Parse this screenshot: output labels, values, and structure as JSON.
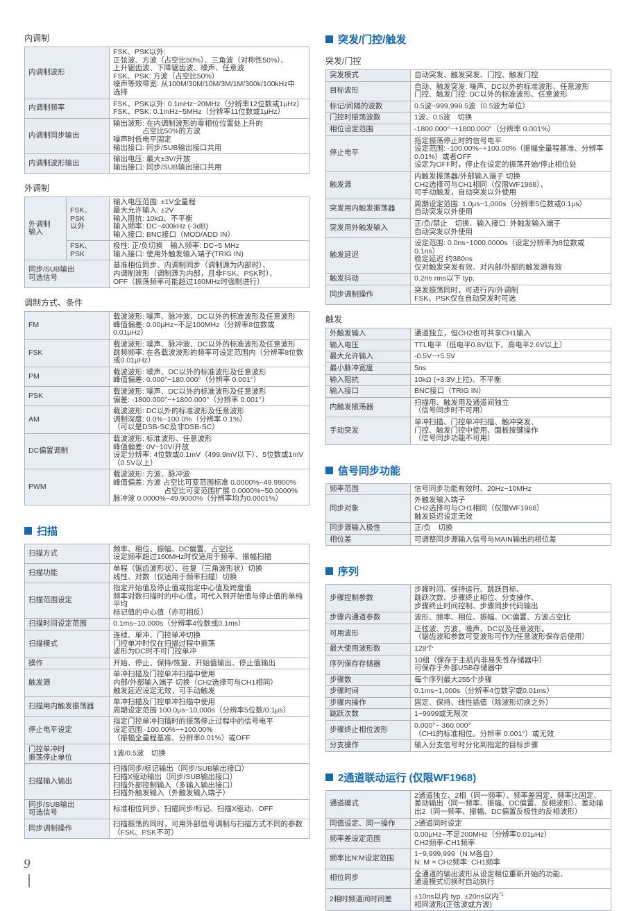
{
  "page": {
    "number": "9"
  },
  "colors": {
    "accent": "#1769aa",
    "label_bg": "#e8edf3",
    "border": "#a9b2ba",
    "footnote": "#cc3333"
  },
  "columns": [
    {
      "sections": [
        {
          "heading": {
            "text": "内调制",
            "style": "plain"
          },
          "table": {
            "rows": [
              {
                "label": "内调制波形",
                "value": "FSK、PSK以外:\n正弦波、方波（占空比50%）、三角波（对称性50%）、\n上升锯齿波、下降锯齿波、噪声、任意波\nFSK、PSK: 方波（占空比50%）\n噪声等效带宽: 从100M/30M/10M/3M/1M/300k/100kHz中\n选择"
              },
              {
                "label": "内调制频率",
                "value": "FSK、PSK以外: 0.1mHz~20MHz（分辨率12位数或1μHz）\nFSK、PSK: 0.1mHz~5MHz（分辨率11位数或1μHz）"
              },
              {
                "label": "内调制同步输出",
                "value": "输出波形: 在内调制波形的零相位位置处上升的\n　　　　占空比50%的方波\n噪声时低电平固定\n输出接口: 同步/SUB输出接口共用"
              },
              {
                "label": "内调制波形输出",
                "value": "输出电压: 最大±3V/开放\n输出接口: 同步/SUB输出接口共用"
              }
            ]
          }
        },
        {
          "heading": {
            "text": "外调制",
            "style": "plain"
          },
          "modx": {
            "group_label": "外调制\n输入",
            "sub_rows": [
              {
                "sub": "FSK、PSK\n以外",
                "value": "输入电压范围: ±1V全量程\n最大允许输入: ±2V\n输入阻抗: 10kΩ、不平衡\n输入频率: DC~400kHz (-3dB)\n输入接口: BNC接口（MOD/ADD IN）"
              },
              {
                "sub": "FSK、PSK",
                "value": "极性: 正/负切换　输入频率: DC~5 MHz\n输入接口: 使用外触发输入端子(TRIG IN)"
              }
            ],
            "bottom_row": {
              "label": "同步/SUB输出\n可选信号",
              "value": "基准相位同步、内调制同步（调制源为内部时）、\n内调制波形（调制源为内部，且非FSK、PSK时）、\nOFF（振荡频率可能超过160MHz时强制进行）"
            }
          }
        },
        {
          "heading": {
            "text": "调制方式、条件",
            "style": "plain"
          },
          "table": {
            "rows": [
              {
                "label": "FM",
                "value": "载波波形: 噪声、脉冲波、DC以外的标准波形及任意波形\n峰值偏差: 0.00μHz~不足100MHz（分辨率8位数或0.01μHz）"
              },
              {
                "label": "FSK",
                "value": "载波波形: 噪声、脉冲波、DC以外的标准波形及任意波形\n跳频频率: 在各载波波形的频率可设定范围内（分辨率8位数或0.01μHz）"
              },
              {
                "label": "PM",
                "value": "载波波形: 噪声、DC以外的标准波形及任意波形\n峰值偏差: 0.000°~180.000°（分辨率 0.001°）"
              },
              {
                "label": "PSK",
                "value": "载波波形: 噪声、DC以外的标准波形及任意波形\n偏差: -1800.000°~+1800.000°（分辨率 0.001°）"
              },
              {
                "label": "AM",
                "value": "载波波形: DC以外的标准波形及任意波形\n调制深度: 0.0%~100.0%（分辨率 0.1%）\n（可以是DSB-SC及非DSB-SC）"
              },
              {
                "label": "DC偏置调制",
                "value": "载波波形: 标准波形、任意波形\n峰值偏差: 0V~10V/开放\n设定分辨率: 4位数或0.1mV（499.9mV以下）、5位数或1mV\n（0.5V以上）"
              },
              {
                "label": "PWM",
                "value": "载波波形: 方波、脉冲波\n峰值偏差: 方波 占空比可变范围标准 0.0000%~49.9900%\n　　　　　　　占空比可变范围扩展 0.0000%~50.0000%\n脉冲波 0.0000%~49.9000%（分辨率均为0.0001%）"
              }
            ]
          }
        },
        {
          "heading": {
            "text": "扫描",
            "style": "accent"
          },
          "table": {
            "rows": [
              {
                "label": "扫描方式",
                "value": "频率、相位、振幅、DC偏置、占空比\n设定频率超过160MHz时仅适用于频率、振幅扫描"
              },
              {
                "label": "扫描功能",
                "value": "单程（锯齿波形状）、往复（三角波形状）切换\n线性、对数（仅适用于频率扫描）切换"
              },
              {
                "label": "扫描范围设定",
                "value": "指定开始值及停止值或指定中心值及跨度值\n频率对数扫描时的中心值，可代入到开始值与停止值的单纯平均\n标记值的中心值（亦可相反）"
              },
              {
                "label": "扫描时间设定范围",
                "value": "0.1ms~10,000s（分辨率4位数或0.1ms）"
              },
              {
                "label": "扫描模式",
                "value": "连续、单冲、门控单冲切换\n门控单冲时仅在扫描过程中振荡\n波形为DC时不可门控单冲"
              },
              {
                "label": "操作",
                "value": "开始、停止、保持/恢复、开始值输出、停止值输出"
              },
              {
                "label": "触发源",
                "value": "单冲扫描及门控单冲扫描中使用\n内部/外部输入端子 切换（CH2选择可与CH1相同）\n触发延迟设定无效，可手动触发"
              },
              {
                "label": "扫描用内触发振荡器",
                "value": "单冲扫描及门控单冲扫描中使用\n周期设定范围 100.0μs~10,000s（分辨率5位数/0.1μs）"
              },
              {
                "label": "停止电平设定",
                "value": "指定门控单冲扫描时的振荡停止过程中的信号电平\n设定范围 -100.00%~+100.00%\n（振幅全量程基准、分辨率0.01%）或OFF"
              },
              {
                "label": "门控单冲时\n振荡停止单位",
                "value": "1波/0.5波　切换"
              },
              {
                "label": "扫描输入输出",
                "value": "扫描同步/标记输出（同步/SUB输出接口）\n扫描X驱动输出（同步/SUB输出接口）\n扫描外部控制输入（多输入输出接口）\n扫描外触发输入（外触发输入端子）"
              },
              {
                "label": "同步/SUB输出\n可选信号",
                "value": "标准相位同步、扫描同步/标记、扫描X驱动、OFF"
              },
              {
                "label": "同步调制操作",
                "value": "扫描振荡的同时，可用外部信号调制与扫描方式不同的参数\n（FSK、PSK不可）"
              }
            ]
          }
        }
      ]
    },
    {
      "sections": [
        {
          "heading": {
            "text": "突发/门控/触发",
            "style": "accent"
          }
        },
        {
          "heading": {
            "text": "突发/门控",
            "style": "plain"
          },
          "table": {
            "rows": [
              {
                "label": "突发模式",
                "value": "自动突发、触发突发、门控、触发门控"
              },
              {
                "label": "目标波形",
                "value": "自动、触发突发: 噪声、DC以外的标准波形、任意波形\n门控、触发门控: DC以外的标准波形、任意波形"
              },
              {
                "label": "标记/间隔的波数",
                "value": "0.5波~999,999.5波（0.5波为单位）"
              },
              {
                "label": "门控时振荡波数",
                "value": "1波、0.5波　切换"
              },
              {
                "label": "相位设定范围",
                "value": "-1800.000°~+1800.000°（分辨率 0.001%）"
              },
              {
                "label": "停止电平",
                "value": "指定振荡停止时的信号电平\n设定范围: -100.00%~+100.00%（振幅全量程基准、分辨率0.01%）或者OFF\n设定为OFF时，停止在设定的振荡开始/停止相位处"
              },
              {
                "label": "触发源",
                "value": "内触发振荡器/外部输入端子 切换\nCH2选择可与CH1相同（仅限WF1968）、\n可手动触发，自动突发以外使用"
              },
              {
                "label": "突发用内触发振荡器",
                "value": "周期设定范围: 1.0μs~1,000s（分辨率5位数或0.1μs）\n自动突发以外使用"
              },
              {
                "label": "突发用外触发输入",
                "value": "正/负/禁止　切换、输入接口: 外触发输入端子\n自动突发以外使用"
              },
              {
                "label": "触发延迟",
                "value": "设定范围: 0.0ns~1000.0000s（设定分辨率为8位数或0.1ns）\n稳定延迟 约380ns\n仅对触发突发有效、对内部/外部的触发源有效"
              },
              {
                "label": "触发抖动",
                "value": "0.2ns rms以下 typ."
              },
              {
                "label": "同步调制操作",
                "value": "突发振荡同时，可进行内/外调制\nFSK、PSK仅在自动突发时可选"
              }
            ]
          }
        },
        {
          "heading": {
            "text": "触发",
            "style": "plain"
          },
          "table": {
            "rows": [
              {
                "label": "外触发输入",
                "value": "通道独立，但CH2也可共享CH1输入"
              },
              {
                "label": "输入电压",
                "value": "TTL电平（低电平0.8V以下、高电平2.6V以上）"
              },
              {
                "label": "最大允许输入",
                "value": "-0.5V~+5.5V"
              },
              {
                "label": "最小脉冲宽度",
                "value": "5ns"
              },
              {
                "label": "输入阻抗",
                "value": "10kΩ (+3.3V上拉)、不平衡"
              },
              {
                "label": "输入接口",
                "value": "BNC接口（TRIG IN）"
              },
              {
                "label": "内触发振荡器",
                "value": "扫描用、触发用及通道间独立\n（信号同步时不可用）"
              },
              {
                "label": "手动突发",
                "value": "单冲扫描、门控单冲扫描、触冲突发、\n门控、触发门控中使用、面板按键操作\n（信号同步功能不可用）"
              }
            ]
          }
        },
        {
          "heading": {
            "text": "信号同步功能",
            "style": "accent"
          },
          "table": {
            "rows": [
              {
                "label": "频率范围",
                "value": "信号同步功能有效时、20Hz~10MHz"
              },
              {
                "label": "同步对象",
                "value": "外触发输入端子\nCH2选择可与CH1相同（仅限WF1968）\n触发延迟设定无效"
              },
              {
                "label": "同步源输入极性",
                "value": "正/负　切换"
              },
              {
                "label": "相位差",
                "value": "可调整同步源输入信号与MAIN输出的相位差"
              }
            ]
          }
        },
        {
          "heading": {
            "text": "序列",
            "style": "accent"
          },
          "table": {
            "rows": [
              {
                "label": "步骤控制参数",
                "value": "步骤时间、保持运行、跳跃目标、\n跳跃次数、步骤终止相位、分支操作、\n步骤终止时间控制、步骤同步代码输出"
              },
              {
                "label": "步骤内通道参数",
                "value": "波形、频率、相位、振幅、DC偏置、方波占空比"
              },
              {
                "label": "可用波形",
                "value": "正弦波、方波、噪声、DC以及任意波形。\n（锯齿波和参数可变波形可作为任意波形保存后使用）"
              },
              {
                "label": "最大使用波形数",
                "value": "128个"
              },
              {
                "label": "序列保存存储器",
                "value": "10组（保存于主机内非易失性存储器中）\n可保存于外部USB存储器中"
              },
              {
                "label": "步骤数",
                "value": "每个序列最大255个步骤"
              },
              {
                "label": "步骤时间",
                "value": "0.1ms~1,000s（分辨率4位数字或0.01ms）"
              },
              {
                "label": "步骤内操作",
                "value": "固定、保持、线性插值（除波形切换之外）"
              },
              {
                "label": "跳跃次数",
                "value": "1~9999或无限次"
              },
              {
                "label": "步骤终止相位波形",
                "value": "0.000°~ 360.000°\n（CH1的标准相位。分辨率 0.001°）或无效"
              },
              {
                "label": "分支操作",
                "value": "输入分支信号时分化到指定的目标步骤"
              }
            ]
          }
        },
        {
          "heading": {
            "text": "2通道联动运行 (仅限WF1968)",
            "style": "accent"
          },
          "table": {
            "rows": [
              {
                "label": "通道模式",
                "value": "2通道独立、2相（同一频率）、频率差固定、频率比固定、差动输出（同一频率、振幅、DC偏置、反相波形）、差动输出2（同一频率、振幅、DC偏置反极性的反相波形）"
              },
              {
                "label": "同值设定、同一操作",
                "value": "2通道同时设定"
              },
              {
                "label": "频率差设定范围",
                "value": "0.00μHz~不足200MHz（分辨率0.01μHz）\nCH2频率-CH1频率"
              },
              {
                "label": "频率比N:M设定范围",
                "value": "1~9,999,999（N.M各自）\nN: M = CH2频率: CH1频率"
              },
              {
                "label": "相位同步",
                "value": "全通道的输出波形从设定相位重新开始的功能、\n通道模式切换时自动执行"
              },
              {
                "label": "2相时频道间时间差",
                "value": "±10ns以内 typ. ±20ns以内\n相同波形(正弦波或方波)",
                "sup": "*1",
                "sup_line": 0
              }
            ]
          }
        }
      ]
    }
  ]
}
